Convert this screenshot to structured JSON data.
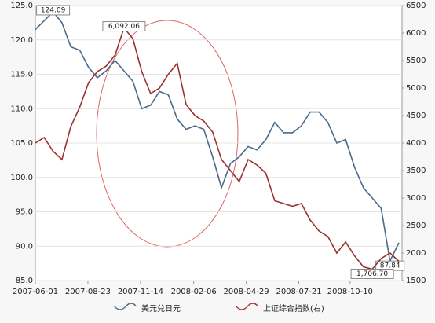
{
  "chart_data": {
    "type": "line",
    "x": [
      "2007-06-01",
      "2007-06-15",
      "2007-06-29",
      "2007-07-13",
      "2007-07-27",
      "2007-08-10",
      "2007-08-24",
      "2007-09-07",
      "2007-09-21",
      "2007-10-05",
      "2007-10-19",
      "2007-11-02",
      "2007-11-16",
      "2007-11-30",
      "2007-12-14",
      "2007-12-28",
      "2008-01-11",
      "2008-01-25",
      "2008-02-08",
      "2008-02-22",
      "2008-03-07",
      "2008-03-21",
      "2008-04-04",
      "2008-04-18",
      "2008-05-02",
      "2008-05-16",
      "2008-05-30",
      "2008-06-13",
      "2008-06-27",
      "2008-07-11",
      "2008-07-25",
      "2008-08-08",
      "2008-08-22",
      "2008-09-05",
      "2008-09-19",
      "2008-10-03",
      "2008-10-17",
      "2008-10-31",
      "2008-11-14",
      "2008-11-28",
      "2008-12-12",
      "2008-12-26"
    ],
    "xlim": [
      "2007-06-01",
      "2008-12-31"
    ],
    "xticks": [
      "2007-06-01",
      "2007-08-23",
      "2007-11-14",
      "2008-02-06",
      "2008-04-29",
      "2008-07-21",
      "2008-10-10"
    ],
    "ylim": [
      85,
      125
    ],
    "yticks": [
      {
        "value": 85,
        "label": "85.0"
      },
      {
        "value": 90,
        "label": "90.0"
      },
      {
        "value": 95,
        "label": "95.0"
      },
      {
        "value": 100,
        "label": "100.0"
      },
      {
        "value": 105,
        "label": "105.0"
      },
      {
        "value": 110,
        "label": "110.0"
      },
      {
        "value": 115,
        "label": "115.0"
      },
      {
        "value": 120,
        "label": "120.0"
      },
      {
        "value": 125,
        "label": "125.0"
      }
    ],
    "y2lim": [
      1500,
      6500
    ],
    "y2ticks": [
      1500,
      2000,
      2500,
      3000,
      3500,
      4000,
      4500,
      5000,
      5500,
      6000,
      6500
    ],
    "grid": true,
    "series": [
      {
        "name": "美元兑日元",
        "color": "#4a6a8c",
        "values": [
          121.5,
          122.8,
          124.09,
          122.5,
          119.0,
          118.5,
          116.0,
          114.5,
          115.5,
          117.0,
          115.5,
          114.0,
          110.0,
          110.5,
          112.5,
          112.0,
          108.5,
          107.0,
          107.5,
          107.0,
          103.0,
          98.5,
          102.0,
          103.0,
          104.5,
          104.0,
          105.5,
          108.0,
          106.5,
          106.5,
          107.5,
          109.5,
          109.5,
          108.0,
          105.0,
          105.5,
          101.5,
          98.5,
          97.0,
          95.5,
          87.84,
          90.5
        ],
        "value_labels": [
          null,
          null,
          "124.09",
          null,
          null,
          null,
          null,
          null,
          null,
          null,
          null,
          null,
          null,
          null,
          null,
          null,
          null,
          null,
          null,
          null,
          null,
          null,
          null,
          null,
          null,
          null,
          null,
          null,
          null,
          null,
          null,
          null,
          null,
          null,
          null,
          null,
          null,
          null,
          null,
          null,
          "87.84",
          null
        ]
      },
      {
        "name": "上证综合指数(右)",
        "color": "#9b3030",
        "axis": "y2",
        "values": [
          4000,
          4100,
          3850,
          3700,
          4300,
          4650,
          5100,
          5300,
          5400,
          5600,
          6092.06,
          5900,
          5300,
          4900,
          5000,
          5250,
          5450,
          4700,
          4500,
          4400,
          4200,
          3700,
          3500,
          3300,
          3700,
          3600,
          3450,
          2950,
          2900,
          2850,
          2900,
          2600,
          2400,
          2300,
          2000,
          2200,
          1950,
          1750,
          1706.7,
          1900,
          2000,
          1850
        ],
        "value_labels": [
          null,
          null,
          null,
          null,
          null,
          null,
          null,
          null,
          null,
          null,
          "6,092.06",
          null,
          null,
          null,
          null,
          null,
          null,
          null,
          null,
          null,
          null,
          null,
          null,
          null,
          null,
          null,
          null,
          null,
          null,
          null,
          null,
          null,
          null,
          null,
          null,
          null,
          null,
          null,
          "1,706.70",
          null,
          null,
          null
        ]
      }
    ]
  }
}
